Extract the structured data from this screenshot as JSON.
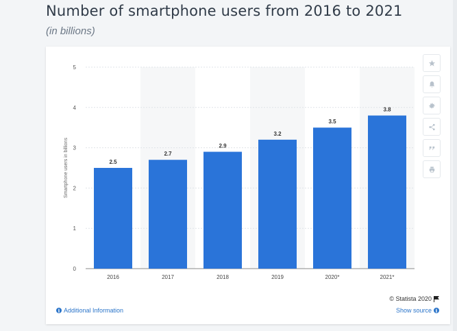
{
  "page": {
    "title": "Number of smartphone users from 2016 to 2021",
    "subtitle": "(in billions)"
  },
  "chart_data": {
    "type": "bar",
    "categories": [
      "2016",
      "2017",
      "2018",
      "2019",
      "2020*",
      "2021*"
    ],
    "values": [
      2.5,
      2.7,
      2.9,
      3.2,
      3.5,
      3.8
    ],
    "value_labels": [
      "2.5",
      "2.7",
      "2.9",
      "3.2",
      "3.5",
      "3.8"
    ],
    "ylabel": "Smartphone users in billions",
    "ylim": [
      0,
      5
    ],
    "yticks": [
      "0",
      "1",
      "2",
      "3",
      "4",
      "5"
    ],
    "grid": true,
    "bar_color": "#2a74d9",
    "alt_band_color": "#f6f7f8"
  },
  "toolbar": {
    "items": [
      {
        "name": "star-icon",
        "glyph": "★"
      },
      {
        "name": "bell-icon",
        "glyph": "bell"
      },
      {
        "name": "gear-icon",
        "glyph": "⚙"
      },
      {
        "name": "share-icon",
        "glyph": "share"
      },
      {
        "name": "quote-icon",
        "glyph": "❞"
      },
      {
        "name": "print-icon",
        "glyph": "print"
      }
    ]
  },
  "footer": {
    "copyright": "© Statista 2020",
    "additional_info": "Additional Information",
    "show_source": "Show source"
  },
  "colors": {
    "link": "#2a74c9",
    "title": "#303b48"
  }
}
